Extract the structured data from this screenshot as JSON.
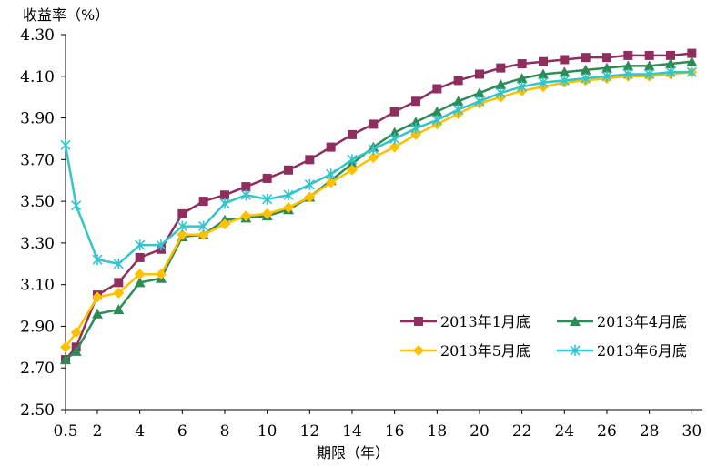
{
  "chart_data": {
    "type": "line",
    "ylabel": "收益率（%）",
    "xlabel": "期限（年）",
    "ylim": [
      2.5,
      4.3
    ],
    "yticks": [
      "2.50",
      "2.70",
      "2.90",
      "3.10",
      "3.30",
      "3.50",
      "3.70",
      "3.90",
      "4.10",
      "4.30"
    ],
    "xticks": [
      "0.5",
      "2",
      "4",
      "6",
      "8",
      "10",
      "12",
      "14",
      "16",
      "18",
      "20",
      "22",
      "24",
      "26",
      "28",
      "30"
    ],
    "x": [
      0.5,
      1,
      2,
      3,
      4,
      5,
      6,
      7,
      8,
      9,
      10,
      11,
      12,
      13,
      14,
      15,
      16,
      17,
      18,
      19,
      20,
      21,
      22,
      23,
      24,
      25,
      26,
      27,
      28,
      29,
      30
    ],
    "legend_position": "lower-right",
    "series": [
      {
        "name": "2013年1月底",
        "color": "#8e2d5e",
        "marker": "square",
        "values": [
          2.74,
          2.8,
          3.05,
          3.11,
          3.23,
          3.27,
          3.44,
          3.5,
          3.53,
          3.57,
          3.61,
          3.65,
          3.7,
          3.76,
          3.82,
          3.87,
          3.93,
          3.98,
          4.04,
          4.08,
          4.11,
          4.14,
          4.16,
          4.17,
          4.18,
          4.19,
          4.19,
          4.2,
          4.2,
          4.2,
          4.21
        ]
      },
      {
        "name": "2013年4月底",
        "color": "#2e8b57",
        "marker": "triangle",
        "values": [
          2.74,
          2.78,
          2.96,
          2.98,
          3.11,
          3.13,
          3.33,
          3.34,
          3.41,
          3.42,
          3.43,
          3.46,
          3.52,
          3.6,
          3.68,
          3.76,
          3.83,
          3.88,
          3.93,
          3.98,
          4.02,
          4.06,
          4.09,
          4.11,
          4.12,
          4.13,
          4.14,
          4.15,
          4.15,
          4.16,
          4.17
        ]
      },
      {
        "name": "2013年5月底",
        "color": "#ffc000",
        "marker": "diamond",
        "values": [
          2.8,
          2.87,
          3.04,
          3.06,
          3.15,
          3.15,
          3.34,
          3.34,
          3.39,
          3.43,
          3.44,
          3.47,
          3.52,
          3.59,
          3.65,
          3.71,
          3.76,
          3.82,
          3.87,
          3.92,
          3.97,
          4.0,
          4.03,
          4.05,
          4.07,
          4.08,
          4.09,
          4.1,
          4.1,
          4.11,
          4.12
        ]
      },
      {
        "name": "2013年6月底",
        "color": "#33c4cc",
        "marker": "asterisk",
        "values": [
          3.77,
          3.48,
          3.22,
          3.2,
          3.29,
          3.29,
          3.38,
          3.38,
          3.49,
          3.53,
          3.51,
          3.53,
          3.58,
          3.63,
          3.7,
          3.75,
          3.8,
          3.85,
          3.89,
          3.94,
          3.98,
          4.02,
          4.05,
          4.07,
          4.08,
          4.09,
          4.1,
          4.11,
          4.11,
          4.12,
          4.12
        ]
      }
    ]
  }
}
